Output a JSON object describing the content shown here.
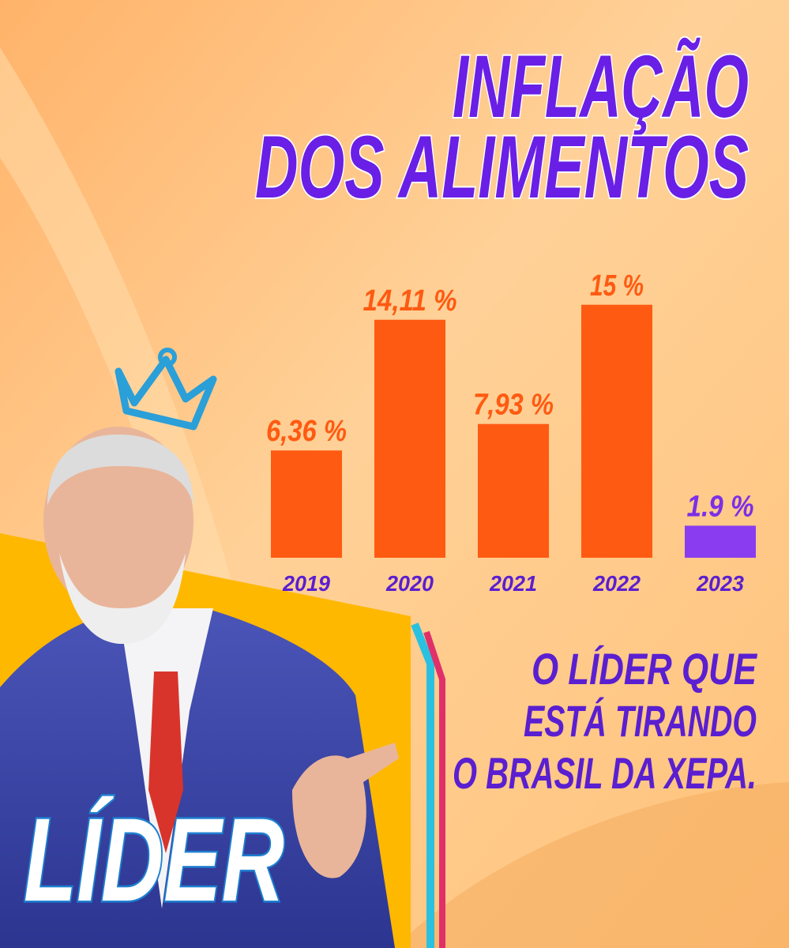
{
  "chart_data": {
    "type": "bar",
    "title_lines": [
      "INFLAÇÃO",
      "DOS ALIMENTOS"
    ],
    "categories": [
      "2019",
      "2020",
      "2021",
      "2022",
      "2023"
    ],
    "values": [
      6.36,
      14.11,
      7.93,
      15,
      1.9
    ],
    "value_labels": [
      "6,36 %",
      "14,11 %",
      "7,93 %",
      "15 %",
      "1.9 %"
    ],
    "colors": [
      "#ff5a12",
      "#ff5a12",
      "#ff5a12",
      "#ff5a12",
      "#8a3cf0"
    ],
    "value_label_colors": [
      "#ff5a12",
      "#ff5a12",
      "#ff5a12",
      "#ff5a12",
      "#7b2fe8"
    ],
    "tagline_lines": [
      "O LÍDER QUE",
      "ESTÁ TIRANDO",
      "O BRASIL DA XEPA."
    ],
    "badge": "LÍDER"
  }
}
